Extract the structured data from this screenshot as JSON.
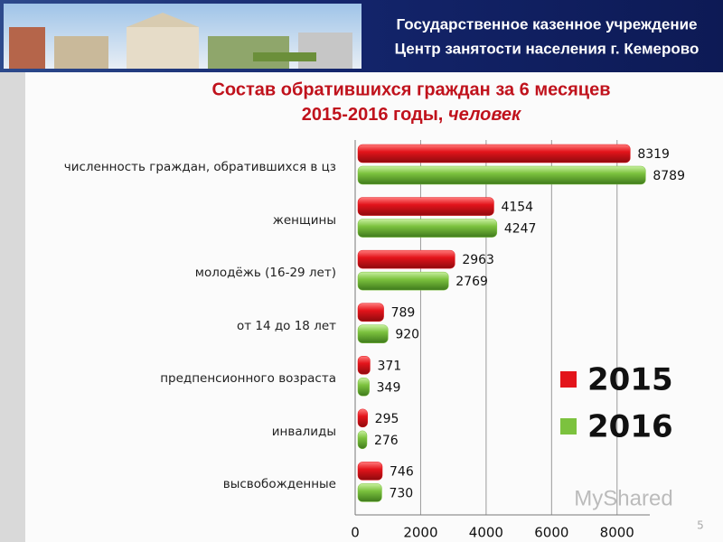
{
  "header": {
    "line1": "Государственное казенное учреждение",
    "line2": "Центр занятости населения г. Кемерово"
  },
  "chart_data": {
    "type": "hbar",
    "title": "Состав обратившихся граждан  за 6 месяцев",
    "subtitle": "2015-2016 годы,",
    "unit": "человек",
    "categories": [
      "численность граждан, обратившихся в цз",
      "женщины",
      "молодёжь (16-29 лет)",
      "от 14 до 18 лет",
      "предпенсионного возраста",
      "инвалиды",
      "высвобожденные"
    ],
    "series": [
      {
        "name": "2015",
        "color": "#e3141b",
        "values": [
          8319,
          4154,
          2963,
          789,
          371,
          295,
          746
        ]
      },
      {
        "name": "2016",
        "color": "#7cc23e",
        "values": [
          8789,
          4247,
          2769,
          920,
          349,
          276,
          730
        ]
      }
    ],
    "xlim": [
      0,
      9000
    ],
    "xticks": [
      0,
      2000,
      4000,
      6000,
      8000
    ],
    "grid": true,
    "legend": "right"
  },
  "slide_number": "5",
  "watermark": "MyShared"
}
